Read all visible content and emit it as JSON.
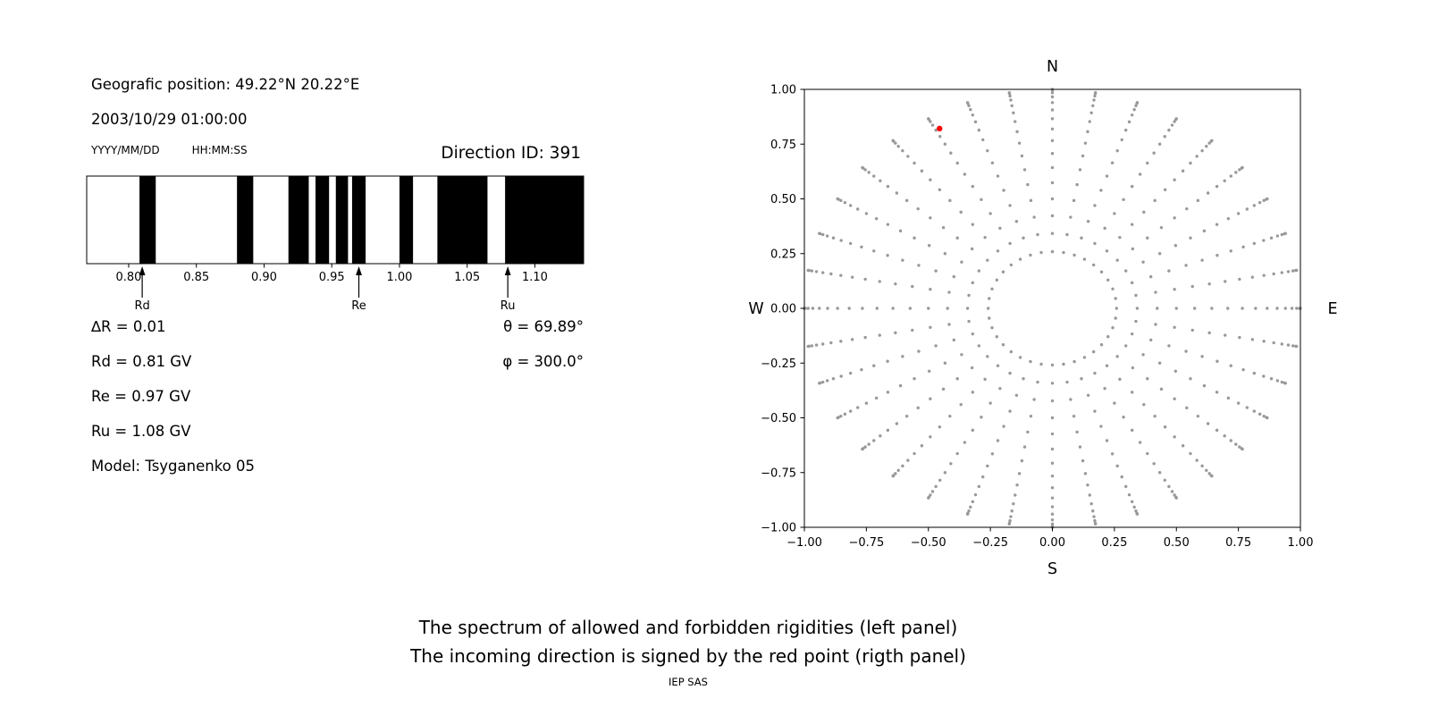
{
  "page": {
    "background": "#ffffff"
  },
  "header": {
    "position_label": "Geografic position: 49.22°N 20.22°E",
    "datetime": "2003/10/29 01:00:00",
    "date_format_label": "YYYY/MM/DD",
    "time_format_label": "HH:MM:SS",
    "direction_id_label": "Direction ID: 391"
  },
  "parameters": {
    "delta_r": "∆R = 0.01",
    "theta": "θ = 69.89°",
    "rd": "Rd = 0.81 GV",
    "phi": "φ = 300.0°",
    "re": "Re = 0.97 GV",
    "ru": "Ru = 1.08 GV",
    "model": "Model: Tsyganenko 05"
  },
  "chart_data": [
    {
      "name": "rigidity_spectrum",
      "type": "bar",
      "description": "Spectrum of allowed (black) and forbidden (white) rigidities in GV",
      "x_range": [
        0.769,
        1.136
      ],
      "x_ticks": [
        0.8,
        0.85,
        0.9,
        0.95,
        1.0,
        1.05,
        1.1
      ],
      "band_color": "#000000",
      "allowed_bands_gv": [
        [
          0.808,
          0.82
        ],
        [
          0.88,
          0.892
        ],
        [
          0.918,
          0.933
        ],
        [
          0.938,
          0.948
        ],
        [
          0.953,
          0.962
        ],
        [
          0.965,
          0.975
        ],
        [
          1.0,
          1.01
        ],
        [
          1.028,
          1.065
        ],
        [
          1.078,
          1.136
        ]
      ],
      "markers": [
        {
          "label": "Rd",
          "value": 0.81
        },
        {
          "label": "Re",
          "value": 0.97
        },
        {
          "label": "Ru",
          "value": 1.08
        }
      ]
    },
    {
      "name": "incoming_direction_map",
      "type": "scatter",
      "description": "Grid of incident directions on sky map; red point marks the incoming direction",
      "xlim": [
        -1.0,
        1.0
      ],
      "ylim": [
        -1.0,
        1.0
      ],
      "x_ticks": [
        -1.0,
        -0.75,
        -0.5,
        -0.25,
        0.0,
        0.25,
        0.5,
        0.75,
        1.0
      ],
      "y_ticks": [
        -1.0,
        -0.75,
        -0.5,
        -0.25,
        0.0,
        0.25,
        0.5,
        0.75,
        1.0
      ],
      "compass_labels": {
        "top": "N",
        "right": "E",
        "bottom": "S",
        "left": "W"
      },
      "direction_grid": {
        "azimuth_deg_start": 0,
        "azimuth_deg_step": 10,
        "azimuth_count": 36,
        "zenith_deg_start": 15,
        "zenith_deg_step": 5,
        "zenith_deg_end": 90,
        "radius_rule": "sin(zenith)",
        "dot_color": "#999999"
      },
      "incoming_direction": {
        "x": -0.455,
        "y": 0.821,
        "color": "#ff0000"
      }
    }
  ],
  "captions": {
    "line1": "The spectrum of allowed and forbidden rigidities (left panel)",
    "line2": "The incoming direction is signed by the red point (rigth panel)",
    "credit": "IEP SAS"
  }
}
